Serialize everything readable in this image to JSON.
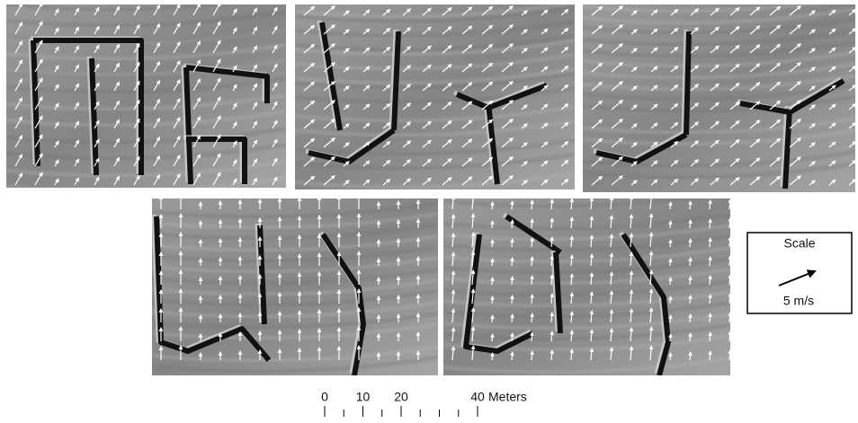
{
  "legend": {
    "title": "Scale",
    "arrow_label": "5 m/s"
  },
  "scale_bar": {
    "labels": [
      0,
      10,
      20,
      40
    ],
    "unit": "Meters"
  }
}
